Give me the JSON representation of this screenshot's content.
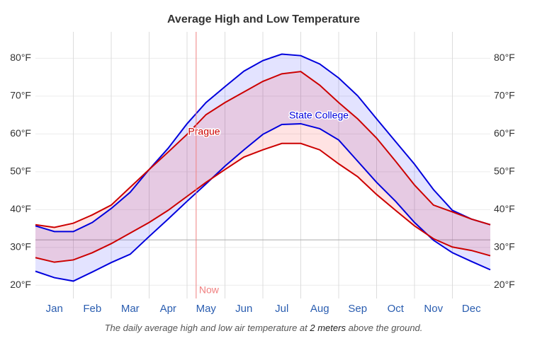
{
  "chart_data": {
    "type": "line",
    "title": "Average High and Low Temperature",
    "caption_parts": [
      "The daily average high and low air temperature at ",
      "2 meters",
      " above the ground."
    ],
    "x": [
      0,
      0.5,
      1,
      1.5,
      2,
      2.5,
      3,
      3.5,
      4,
      4.5,
      5,
      5.5,
      6,
      6.5,
      7,
      7.5,
      8,
      8.5,
      9,
      9.5,
      10,
      10.5,
      11,
      11.5,
      12
    ],
    "xlim": [
      0,
      12
    ],
    "xticks": [
      {
        "value": 0.5,
        "label": "Jan"
      },
      {
        "value": 1.5,
        "label": "Feb"
      },
      {
        "value": 2.5,
        "label": "Mar"
      },
      {
        "value": 3.5,
        "label": "Apr"
      },
      {
        "value": 4.5,
        "label": "May"
      },
      {
        "value": 5.5,
        "label": "Jun"
      },
      {
        "value": 6.5,
        "label": "Jul"
      },
      {
        "value": 7.5,
        "label": "Aug"
      },
      {
        "value": 8.5,
        "label": "Sep"
      },
      {
        "value": 9.5,
        "label": "Oct"
      },
      {
        "value": 10.5,
        "label": "Nov"
      },
      {
        "value": 11.5,
        "label": "Dec"
      }
    ],
    "ylim": [
      16.5,
      87
    ],
    "yticks": [
      {
        "value": 20,
        "label": "20°F"
      },
      {
        "value": 30,
        "label": "30°F"
      },
      {
        "value": 40,
        "label": "40°F"
      },
      {
        "value": 50,
        "label": "50°F"
      },
      {
        "value": 60,
        "label": "60°F"
      },
      {
        "value": 70,
        "label": "70°F"
      },
      {
        "value": 80,
        "label": "80°F"
      }
    ],
    "grid": true,
    "freezing_line": 32,
    "now": {
      "x": 4.24,
      "label": "Now"
    },
    "series": [
      {
        "name": "State College",
        "color": "#0000dd",
        "fill": "rgba(40,40,255,0.13)",
        "high": [
          35.7,
          34.2,
          34.2,
          36.6,
          40.3,
          44.6,
          50.6,
          56.2,
          62.7,
          68.3,
          72.5,
          76.6,
          79.4,
          81.1,
          80.7,
          78.5,
          74.8,
          70.1,
          64,
          58,
          52,
          45.3,
          39.8,
          37.5,
          36
        ],
        "low": [
          23.7,
          22,
          21.1,
          23.5,
          26,
          28.2,
          32.9,
          37.5,
          42.2,
          46.8,
          51.5,
          55.8,
          59.9,
          62.5,
          62.7,
          61.4,
          58.4,
          52.8,
          47.2,
          42.2,
          36.6,
          31.9,
          28.6,
          26.3,
          24.1
        ]
      },
      {
        "name": "Prague",
        "color": "#cc0000",
        "fill": "rgba(255,40,40,0.13)",
        "high": [
          36,
          35.3,
          36.4,
          38.6,
          41.2,
          45.9,
          50.6,
          55.2,
          59.9,
          65.1,
          68.3,
          71.1,
          73.9,
          75.9,
          76.5,
          72.9,
          68.3,
          64,
          58.9,
          52.8,
          46.5,
          41.2,
          39.4,
          37.5,
          36
        ],
        "low": [
          27.3,
          26.1,
          26.7,
          28.6,
          31,
          33.8,
          36.6,
          39.8,
          43.5,
          47.2,
          50.6,
          53.9,
          55.8,
          57.5,
          57.5,
          55.8,
          52.1,
          48.7,
          44,
          39.8,
          35.7,
          32.3,
          30.1,
          29.2,
          27.8
        ]
      }
    ]
  }
}
